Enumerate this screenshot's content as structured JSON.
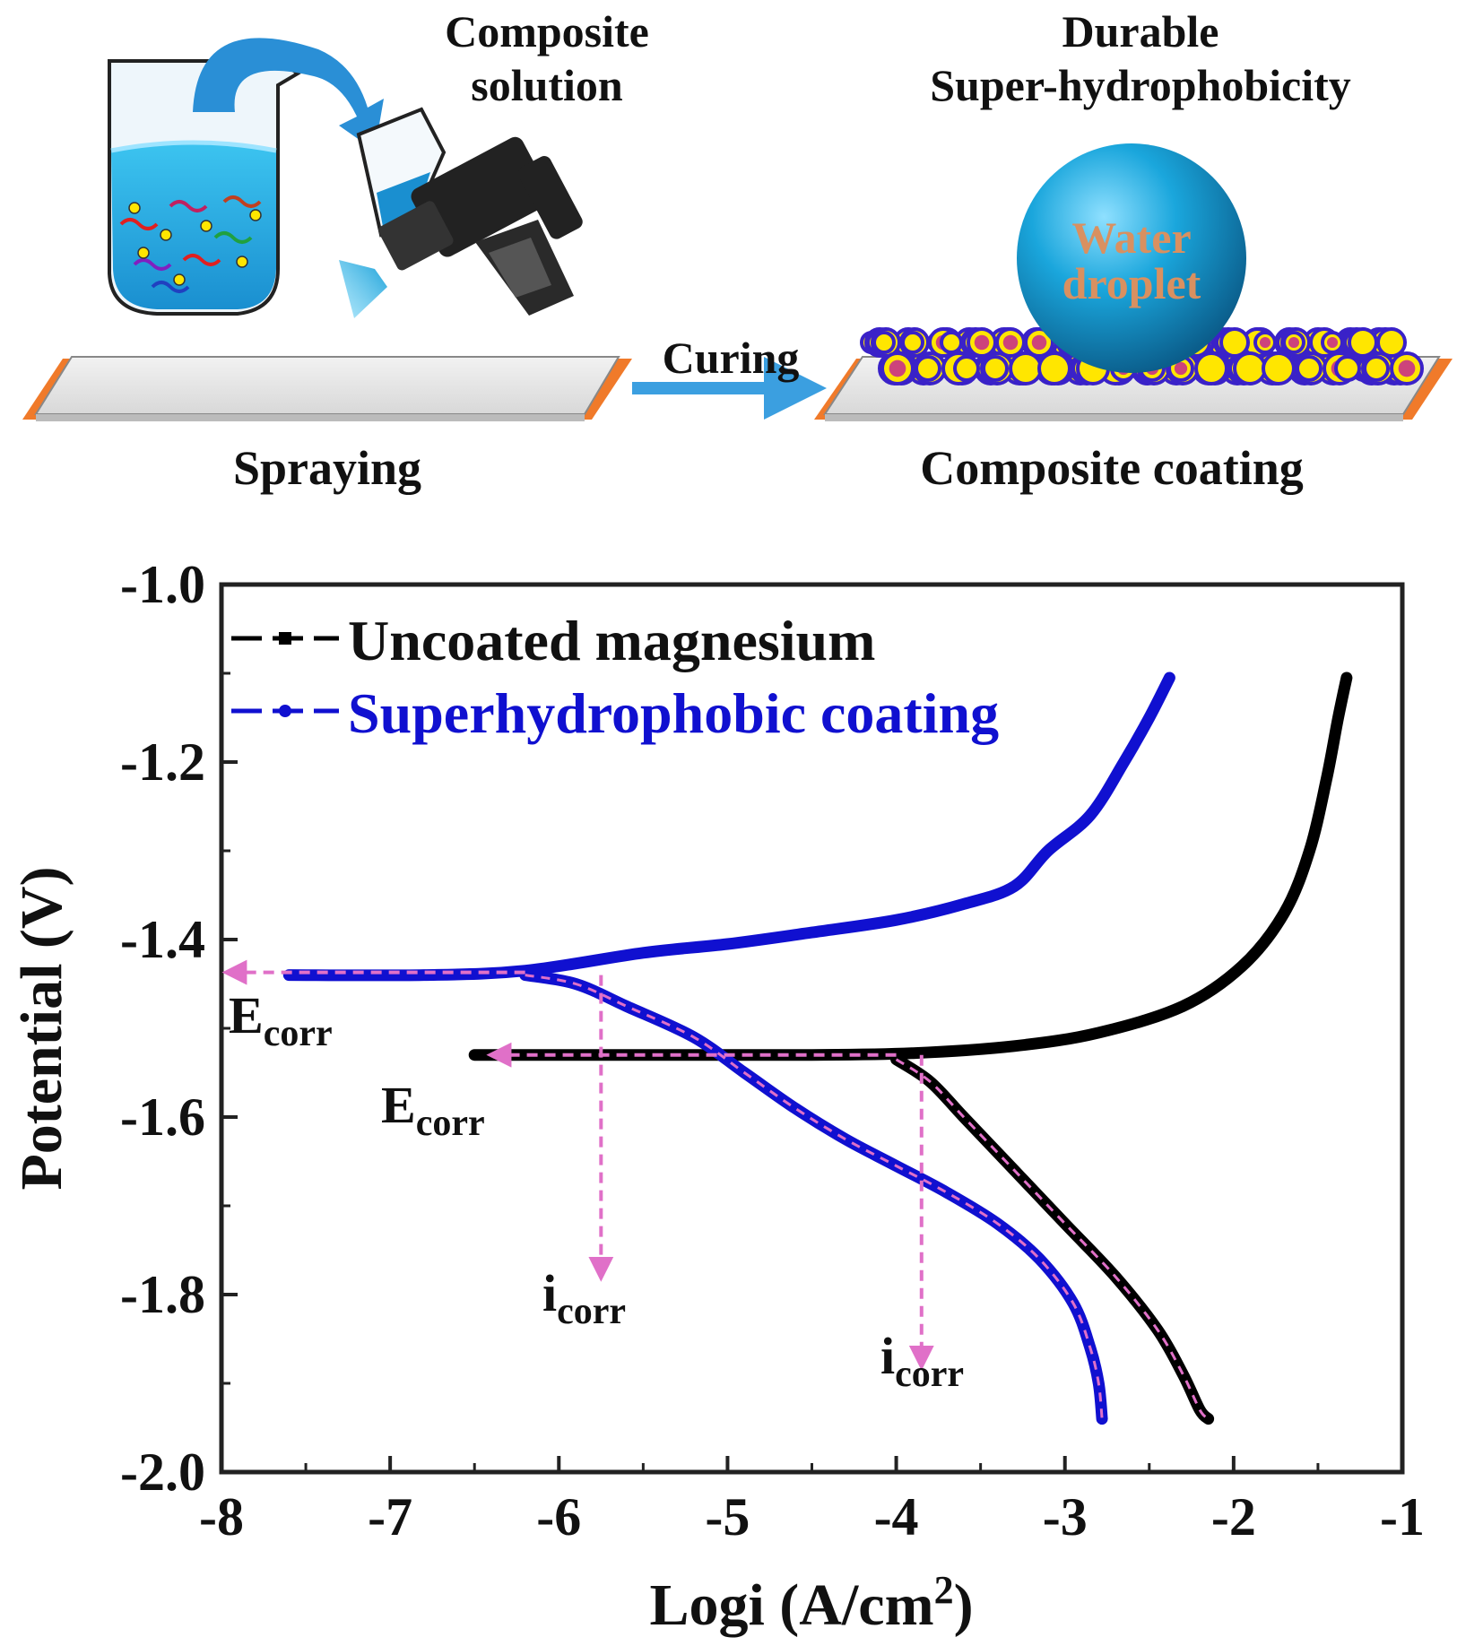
{
  "schematic": {
    "solution_label_1": "Composite",
    "solution_label_2": "solution",
    "durable_label_1": "Durable",
    "durable_label_2": "Super-hydrophobicity",
    "droplet_label_1": "Water",
    "droplet_label_2": "droplet",
    "curing_label": "Curing",
    "spraying_label": "Spraying",
    "coating_label": "Composite coating",
    "colors": {
      "water": "#1aa0d8",
      "substrate_edge": "#f07a2a",
      "particle_fill": "#ffe600",
      "particle_ring": "#3a22c8",
      "arrow": "#3b9fe0"
    }
  },
  "chart_data": {
    "type": "line",
    "xlabel": "Logi (A/cm",
    "xlabel_sup": "2",
    "xlabel_end": ")",
    "ylabel": "Potential (V)",
    "xlim": [
      -8,
      -1
    ],
    "ylim": [
      -2.0,
      -1.0
    ],
    "xticks": [
      -8,
      -7,
      -6,
      -5,
      -4,
      -3,
      -2,
      -1
    ],
    "yticks": [
      -1.0,
      -1.2,
      -1.4,
      -1.6,
      -1.8,
      -2.0
    ],
    "xtick_labels": [
      "-8",
      "-7",
      "-6",
      "-5",
      "-4",
      "-3",
      "-2",
      "-1"
    ],
    "ytick_labels": [
      "-1.0",
      "-1.2",
      "-1.4",
      "-1.6",
      "-1.8",
      "-2.0"
    ],
    "legend_position": "top-left",
    "series": [
      {
        "name": "Uncoated magnesium",
        "color": "#000000",
        "anodic": [
          [
            -6.5,
            -1.53
          ],
          [
            -5.5,
            -1.53
          ],
          [
            -4.5,
            -1.53
          ],
          [
            -3.9,
            -1.528
          ],
          [
            -3.3,
            -1.52
          ],
          [
            -2.8,
            -1.505
          ],
          [
            -2.3,
            -1.475
          ],
          [
            -1.95,
            -1.43
          ],
          [
            -1.7,
            -1.37
          ],
          [
            -1.55,
            -1.3
          ],
          [
            -1.45,
            -1.22
          ],
          [
            -1.38,
            -1.15
          ],
          [
            -1.33,
            -1.105
          ]
        ],
        "cathodic": [
          [
            -4.0,
            -1.535
          ],
          [
            -3.8,
            -1.56
          ],
          [
            -3.6,
            -1.6
          ],
          [
            -3.3,
            -1.66
          ],
          [
            -3.0,
            -1.72
          ],
          [
            -2.7,
            -1.78
          ],
          [
            -2.45,
            -1.84
          ],
          [
            -2.3,
            -1.89
          ],
          [
            -2.2,
            -1.93
          ],
          [
            -2.15,
            -1.94
          ]
        ]
      },
      {
        "name": "Superhydrophobic coating",
        "color": "#1010d0",
        "anodic": [
          [
            -7.6,
            -1.44
          ],
          [
            -6.8,
            -1.44
          ],
          [
            -6.2,
            -1.435
          ],
          [
            -5.5,
            -1.415
          ],
          [
            -5.0,
            -1.405
          ],
          [
            -4.5,
            -1.392
          ],
          [
            -4.0,
            -1.378
          ],
          [
            -3.6,
            -1.36
          ],
          [
            -3.3,
            -1.34
          ],
          [
            -3.1,
            -1.3
          ],
          [
            -2.85,
            -1.26
          ],
          [
            -2.65,
            -1.2
          ],
          [
            -2.5,
            -1.15
          ],
          [
            -2.38,
            -1.105
          ]
        ],
        "cathodic": [
          [
            -6.2,
            -1.44
          ],
          [
            -5.9,
            -1.45
          ],
          [
            -5.6,
            -1.475
          ],
          [
            -5.2,
            -1.51
          ],
          [
            -4.9,
            -1.55
          ],
          [
            -4.6,
            -1.59
          ],
          [
            -4.3,
            -1.625
          ],
          [
            -4.0,
            -1.655
          ],
          [
            -3.7,
            -1.685
          ],
          [
            -3.4,
            -1.72
          ],
          [
            -3.15,
            -1.76
          ],
          [
            -2.95,
            -1.81
          ],
          [
            -2.85,
            -1.86
          ],
          [
            -2.8,
            -1.9
          ],
          [
            -2.78,
            -1.94
          ]
        ]
      }
    ],
    "annotations": [
      {
        "text": "E",
        "sub": "corr",
        "x": -8.0,
        "y": -1.435
      },
      {
        "text": "E",
        "sub": "corr",
        "x": -6.5,
        "y": -1.53
      },
      {
        "text": "i",
        "sub": "corr",
        "x": -5.75,
        "y": -1.8
      },
      {
        "text": "i",
        "sub": "corr",
        "x": -3.85,
        "y": -1.9
      }
    ],
    "annotation_color": "#e070c8"
  }
}
